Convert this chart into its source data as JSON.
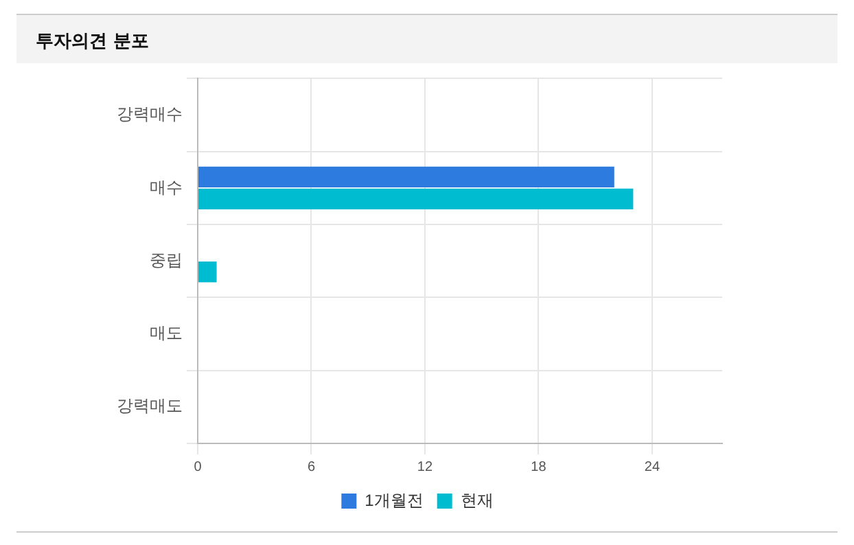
{
  "chart_data": {
    "type": "bar",
    "title": "투자의견 분포",
    "orientation": "horizontal",
    "categories": [
      "강력매수",
      "매수",
      "중립",
      "매도",
      "강력매도"
    ],
    "series": [
      {
        "name": "1개월전",
        "color": "#2e7be0",
        "values": [
          0,
          22,
          0,
          0,
          0
        ]
      },
      {
        "name": "현재",
        "color": "#00bcd0",
        "values": [
          0,
          23,
          1,
          0,
          0
        ]
      }
    ],
    "xlim": [
      0,
      27.7
    ],
    "xticks": [
      0,
      6,
      12,
      18,
      24
    ],
    "grid": true,
    "legend": "bottom"
  }
}
